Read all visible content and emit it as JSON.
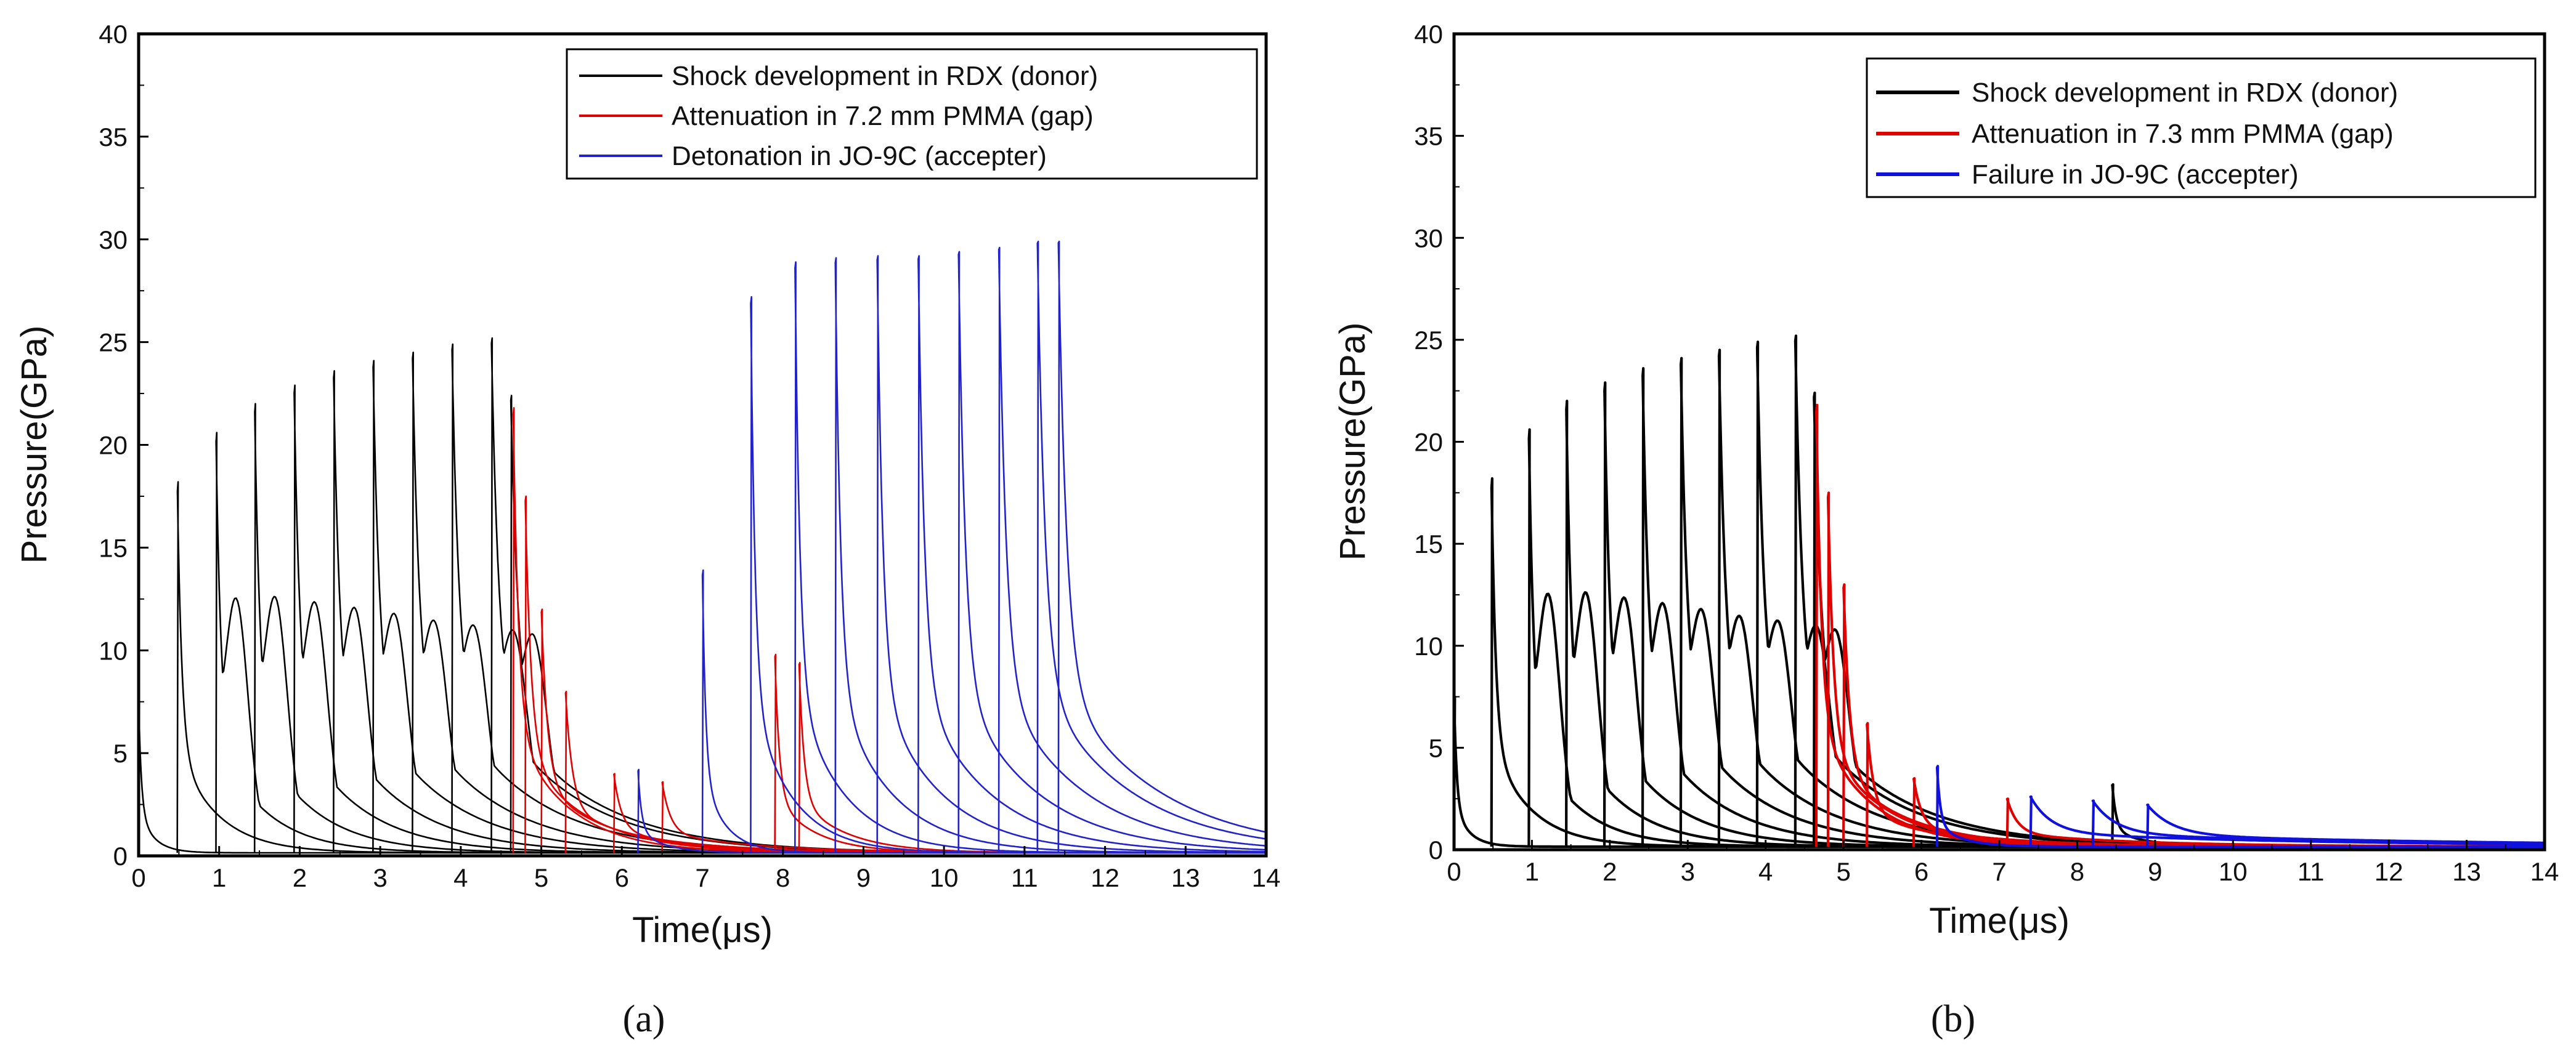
{
  "chart_data": [
    {
      "type": "line",
      "panel": "a",
      "caption": "(a)",
      "xlabel": "Time(μs)",
      "ylabel": "Pressure(GPa)",
      "xlim": [
        0,
        14
      ],
      "ylim": [
        0,
        40
      ],
      "x_ticks": [
        0,
        1,
        2,
        3,
        4,
        5,
        6,
        7,
        8,
        9,
        10,
        11,
        12,
        13,
        14
      ],
      "y_ticks": [
        0,
        5,
        10,
        15,
        20,
        25,
        30,
        35,
        40
      ],
      "grid": false,
      "legend_position": "top-right",
      "series": [
        {
          "name": "Shock development in RDX (donor)",
          "color": "#000000",
          "pulses": [
            {
              "t0": 0,
              "peak": 7.5,
              "shoulder": 0,
              "decay": 0.15
            },
            {
              "t0": 0.48,
              "peak": 18.2,
              "shoulder": 0,
              "decay": 0.5
            },
            {
              "t0": 0.96,
              "peak": 20.6,
              "shoulder": 11.3,
              "decay": 0.6
            },
            {
              "t0": 1.44,
              "peak": 22.0,
              "shoulder": 11.2,
              "decay": 0.7
            },
            {
              "t0": 1.93,
              "peak": 22.9,
              "shoulder": 10.8,
              "decay": 0.8
            },
            {
              "t0": 2.42,
              "peak": 23.6,
              "shoulder": 10.4,
              "decay": 0.9
            },
            {
              "t0": 2.91,
              "peak": 24.1,
              "shoulder": 10.0,
              "decay": 1.0
            },
            {
              "t0": 3.4,
              "peak": 24.5,
              "shoulder": 9.6,
              "decay": 1.05
            },
            {
              "t0": 3.89,
              "peak": 24.9,
              "shoulder": 9.3,
              "decay": 1.1
            },
            {
              "t0": 4.38,
              "peak": 25.2,
              "shoulder": 9.0,
              "decay": 1.15
            },
            {
              "t0": 4.62,
              "peak": 22.4,
              "shoulder": 9.0,
              "decay": 1.2
            }
          ]
        },
        {
          "name": "Attenuation in 7.2 mm PMMA (gap)",
          "color": "#e00000",
          "pulses": [
            {
              "t0": 4.65,
              "peak": 21.8,
              "decay": 0.7
            },
            {
              "t0": 4.8,
              "peak": 17.5,
              "decay": 0.8
            },
            {
              "t0": 5.0,
              "peak": 12.0,
              "decay": 0.9
            },
            {
              "t0": 5.3,
              "peak": 8.0,
              "decay": 1.0
            },
            {
              "t0": 5.9,
              "peak": 4.0,
              "decay": 1.2
            },
            {
              "t0": 6.5,
              "peak": 3.6,
              "decay": 1.3
            },
            {
              "t0": 7.9,
              "peak": 9.8,
              "decay": 0.5
            },
            {
              "t0": 8.2,
              "peak": 9.4,
              "decay": 0.6
            }
          ]
        },
        {
          "name": "Detonation in JO-9C (accepter)",
          "color": "#2222cc",
          "pulses": [
            {
              "t0": 6.2,
              "peak": 4.2,
              "decay": 0.3
            },
            {
              "t0": 7.0,
              "peak": 13.9,
              "decay": 0.25
            },
            {
              "t0": 7.6,
              "peak": 27.2,
              "decay": 0.5
            },
            {
              "t0": 8.15,
              "peak": 28.9,
              "decay": 0.6
            },
            {
              "t0": 8.65,
              "peak": 29.1,
              "decay": 0.7
            },
            {
              "t0": 9.17,
              "peak": 29.2,
              "decay": 0.8
            },
            {
              "t0": 9.68,
              "peak": 29.2,
              "decay": 0.9
            },
            {
              "t0": 10.18,
              "peak": 29.4,
              "decay": 1.0
            },
            {
              "t0": 10.68,
              "peak": 29.6,
              "decay": 1.1
            },
            {
              "t0": 11.16,
              "peak": 29.9,
              "decay": 1.2
            },
            {
              "t0": 11.42,
              "peak": 29.9,
              "decay": 1.3
            }
          ]
        }
      ]
    },
    {
      "type": "line",
      "panel": "b",
      "caption": "(b)",
      "xlabel": "Time(μs)",
      "ylabel": "Pressure(GPa)",
      "xlim": [
        0,
        14
      ],
      "ylim": [
        0,
        40
      ],
      "x_ticks": [
        0,
        1,
        2,
        3,
        4,
        5,
        6,
        7,
        8,
        9,
        10,
        11,
        12,
        13,
        14
      ],
      "y_ticks": [
        0,
        5,
        10,
        15,
        20,
        25,
        30,
        35,
        40
      ],
      "grid": false,
      "legend_position": "top-right",
      "series": [
        {
          "name": "Shock development in RDX (donor)",
          "color": "#000000",
          "pulses": [
            {
              "t0": 0,
              "peak": 7.5,
              "shoulder": 0,
              "decay": 0.15
            },
            {
              "t0": 0.48,
              "peak": 18.2,
              "shoulder": 0,
              "decay": 0.5
            },
            {
              "t0": 0.96,
              "peak": 20.6,
              "shoulder": 11.3,
              "decay": 0.6
            },
            {
              "t0": 1.44,
              "peak": 22.0,
              "shoulder": 11.2,
              "decay": 0.7
            },
            {
              "t0": 1.93,
              "peak": 22.9,
              "shoulder": 10.8,
              "decay": 0.8
            },
            {
              "t0": 2.42,
              "peak": 23.6,
              "shoulder": 10.4,
              "decay": 0.9
            },
            {
              "t0": 2.91,
              "peak": 24.1,
              "shoulder": 10.0,
              "decay": 1.0
            },
            {
              "t0": 3.4,
              "peak": 24.5,
              "shoulder": 9.6,
              "decay": 1.05
            },
            {
              "t0": 3.89,
              "peak": 24.9,
              "shoulder": 9.3,
              "decay": 1.1
            },
            {
              "t0": 4.38,
              "peak": 25.2,
              "shoulder": 9.0,
              "decay": 1.15
            },
            {
              "t0": 4.62,
              "peak": 22.4,
              "shoulder": 9.0,
              "decay": 1.2
            },
            {
              "t0": 8.45,
              "peak": 3.2,
              "decay": 0.4
            }
          ]
        },
        {
          "name": "Attenuation in 7.3 mm PMMA (gap)",
          "color": "#e00000",
          "pulses": [
            {
              "t0": 4.65,
              "peak": 21.8,
              "decay": 0.7
            },
            {
              "t0": 4.8,
              "peak": 17.5,
              "decay": 0.8
            },
            {
              "t0": 5.0,
              "peak": 13.0,
              "decay": 0.9
            },
            {
              "t0": 5.3,
              "peak": 6.2,
              "decay": 1.0
            },
            {
              "t0": 5.9,
              "peak": 3.5,
              "decay": 1.3
            },
            {
              "t0": 7.1,
              "peak": 2.5,
              "decay": 1.8
            }
          ]
        },
        {
          "name": "Failure in JO-9C (accepter)",
          "color": "#1111dd",
          "pulses": [
            {
              "t0": 6.2,
              "peak": 4.1,
              "decay": 0.3
            },
            {
              "t0": 7.4,
              "peak": 2.6,
              "decay": 4.0
            },
            {
              "t0": 8.2,
              "peak": 2.4,
              "decay": 4.5
            },
            {
              "t0": 8.9,
              "peak": 2.2,
              "decay": 5.0
            }
          ]
        }
      ]
    }
  ]
}
